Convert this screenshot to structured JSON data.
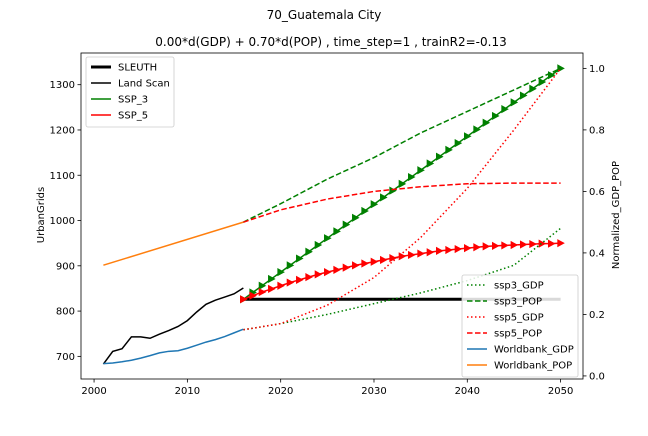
{
  "chart_data": {
    "type": "line",
    "title": "70_Guatemala City",
    "subtitle": "0.00*d(GDP) + 0.70*d(POP) , time_step=1 , trainR2=-0.13",
    "xlim": [
      1998.6,
      2052.4
    ],
    "x_ticks": [
      "2000",
      "2010",
      "2020",
      "2030",
      "2040",
      "2050"
    ],
    "left_axis": {
      "label": "UrbanGrids",
      "ylim": [
        650,
        1370
      ],
      "ticks": [
        "700",
        "800",
        "900",
        "1000",
        "1100",
        "1200",
        "1300"
      ]
    },
    "right_axis": {
      "label": "Normalized_GDP_POP",
      "ylim": [
        -0.01,
        1.05
      ],
      "ticks": [
        "0.0",
        "0.2",
        "0.4",
        "0.6",
        "0.8",
        "1.0"
      ]
    },
    "legend_left": {
      "placement": "top-left",
      "entries": [
        {
          "label": "SLEUTH",
          "color": "#000000",
          "style": "solid-thick"
        },
        {
          "label": "Land Scan",
          "color": "#000000",
          "style": "solid"
        },
        {
          "label": "SSP_3",
          "color": "#008000",
          "style": "solid"
        },
        {
          "label": "SSP_5",
          "color": "#ff0000",
          "style": "solid"
        }
      ]
    },
    "legend_right": {
      "placement": "bottom-right",
      "entries": [
        {
          "label": "ssp3_GDP",
          "color": "#008000",
          "style": "dotted"
        },
        {
          "label": "ssp3_POP",
          "color": "#008000",
          "style": "dashed"
        },
        {
          "label": "ssp5_GDP",
          "color": "#ff0000",
          "style": "dotted"
        },
        {
          "label": "ssp5_POP",
          "color": "#ff0000",
          "style": "dashed"
        },
        {
          "label": "Worldbank_GDP",
          "color": "#1f77b4",
          "style": "solid"
        },
        {
          "label": "Worldbank_POP",
          "color": "#ff7f0e",
          "style": "solid"
        }
      ]
    },
    "series": [
      {
        "name": "SLEUTH",
        "axis": "left",
        "color": "#000000",
        "style": "solid-thick",
        "x": [
          2016,
          2050
        ],
        "y": [
          826,
          826
        ]
      },
      {
        "name": "Land Scan",
        "axis": "left",
        "color": "#000000",
        "style": "solid",
        "x": [
          2001,
          2002,
          2003,
          2004,
          2005,
          2006,
          2007,
          2008,
          2009,
          2010,
          2011,
          2012,
          2013,
          2014,
          2015,
          2016
        ],
        "y": [
          683,
          711,
          717,
          743,
          743,
          740,
          749,
          757,
          766,
          779,
          798,
          815,
          824,
          831,
          838,
          851
        ]
      },
      {
        "name": "SSP_3",
        "axis": "left",
        "color": "#008000",
        "style": "marker",
        "x": [
          2016,
          2017,
          2018,
          2019,
          2020,
          2021,
          2022,
          2023,
          2024,
          2025,
          2026,
          2027,
          2028,
          2029,
          2030,
          2031,
          2032,
          2033,
          2034,
          2035,
          2036,
          2037,
          2038,
          2039,
          2040,
          2041,
          2042,
          2043,
          2044,
          2045,
          2046,
          2047,
          2048,
          2049,
          2050
        ],
        "y": [
          826,
          841,
          856,
          871,
          886,
          901,
          916,
          931,
          946,
          961,
          976,
          991,
          1006,
          1021,
          1036,
          1051,
          1066,
          1081,
          1096,
          1111,
          1126,
          1141,
          1156,
          1171,
          1186,
          1201,
          1216,
          1231,
          1246,
          1261,
          1276,
          1291,
          1306,
          1321,
          1336
        ]
      },
      {
        "name": "SSP_5",
        "axis": "left",
        "color": "#ff0000",
        "style": "marker",
        "x": [
          2016,
          2017,
          2018,
          2019,
          2020,
          2021,
          2022,
          2023,
          2024,
          2025,
          2026,
          2027,
          2028,
          2029,
          2030,
          2031,
          2032,
          2033,
          2034,
          2035,
          2036,
          2037,
          2038,
          2039,
          2040,
          2041,
          2042,
          2043,
          2044,
          2045,
          2046,
          2047,
          2048,
          2049,
          2050
        ],
        "y": [
          826,
          834,
          842,
          849,
          856,
          863,
          869,
          875,
          881,
          886,
          891,
          896,
          901,
          905,
          909,
          913,
          917,
          921,
          924,
          927,
          930,
          933,
          935,
          937,
          939,
          941,
          943,
          944,
          945,
          946,
          947,
          948,
          949,
          949,
          950
        ]
      },
      {
        "name": "ssp3_GDP",
        "axis": "right",
        "color": "#008000",
        "style": "dotted",
        "x": [
          2016,
          2020,
          2025,
          2030,
          2035,
          2040,
          2045,
          2050
        ],
        "y": [
          0.15,
          0.17,
          0.2,
          0.235,
          0.27,
          0.31,
          0.36,
          0.48
        ]
      },
      {
        "name": "ssp3_POP",
        "axis": "right",
        "color": "#008000",
        "style": "dashed",
        "x": [
          2016,
          2020,
          2025,
          2030,
          2035,
          2040,
          2045,
          2050
        ],
        "y": [
          0.5,
          0.56,
          0.64,
          0.71,
          0.79,
          0.86,
          0.93,
          1.0
        ]
      },
      {
        "name": "ssp5_GDP",
        "axis": "right",
        "color": "#ff0000",
        "style": "dotted",
        "x": [
          2016,
          2020,
          2025,
          2030,
          2035,
          2040,
          2045,
          2050
        ],
        "y": [
          0.15,
          0.17,
          0.23,
          0.32,
          0.45,
          0.61,
          0.8,
          1.0
        ]
      },
      {
        "name": "ssp5_POP",
        "axis": "right",
        "color": "#ff0000",
        "style": "dashed",
        "x": [
          2016,
          2020,
          2025,
          2030,
          2035,
          2040,
          2045,
          2050
        ],
        "y": [
          0.5,
          0.54,
          0.575,
          0.6,
          0.615,
          0.625,
          0.627,
          0.627
        ]
      },
      {
        "name": "Worldbank_GDP",
        "axis": "right",
        "color": "#1f77b4",
        "style": "solid",
        "x": [
          2001,
          2002,
          2003,
          2004,
          2005,
          2006,
          2007,
          2008,
          2009,
          2010,
          2011,
          2012,
          2013,
          2014,
          2015,
          2016
        ],
        "y": [
          0.04,
          0.042,
          0.046,
          0.051,
          0.058,
          0.066,
          0.075,
          0.08,
          0.082,
          0.09,
          0.1,
          0.11,
          0.118,
          0.128,
          0.14,
          0.152
        ]
      },
      {
        "name": "Worldbank_POP",
        "axis": "right",
        "color": "#ff7f0e",
        "style": "solid",
        "x": [
          2001,
          2016
        ],
        "y": [
          0.36,
          0.5
        ]
      }
    ]
  }
}
